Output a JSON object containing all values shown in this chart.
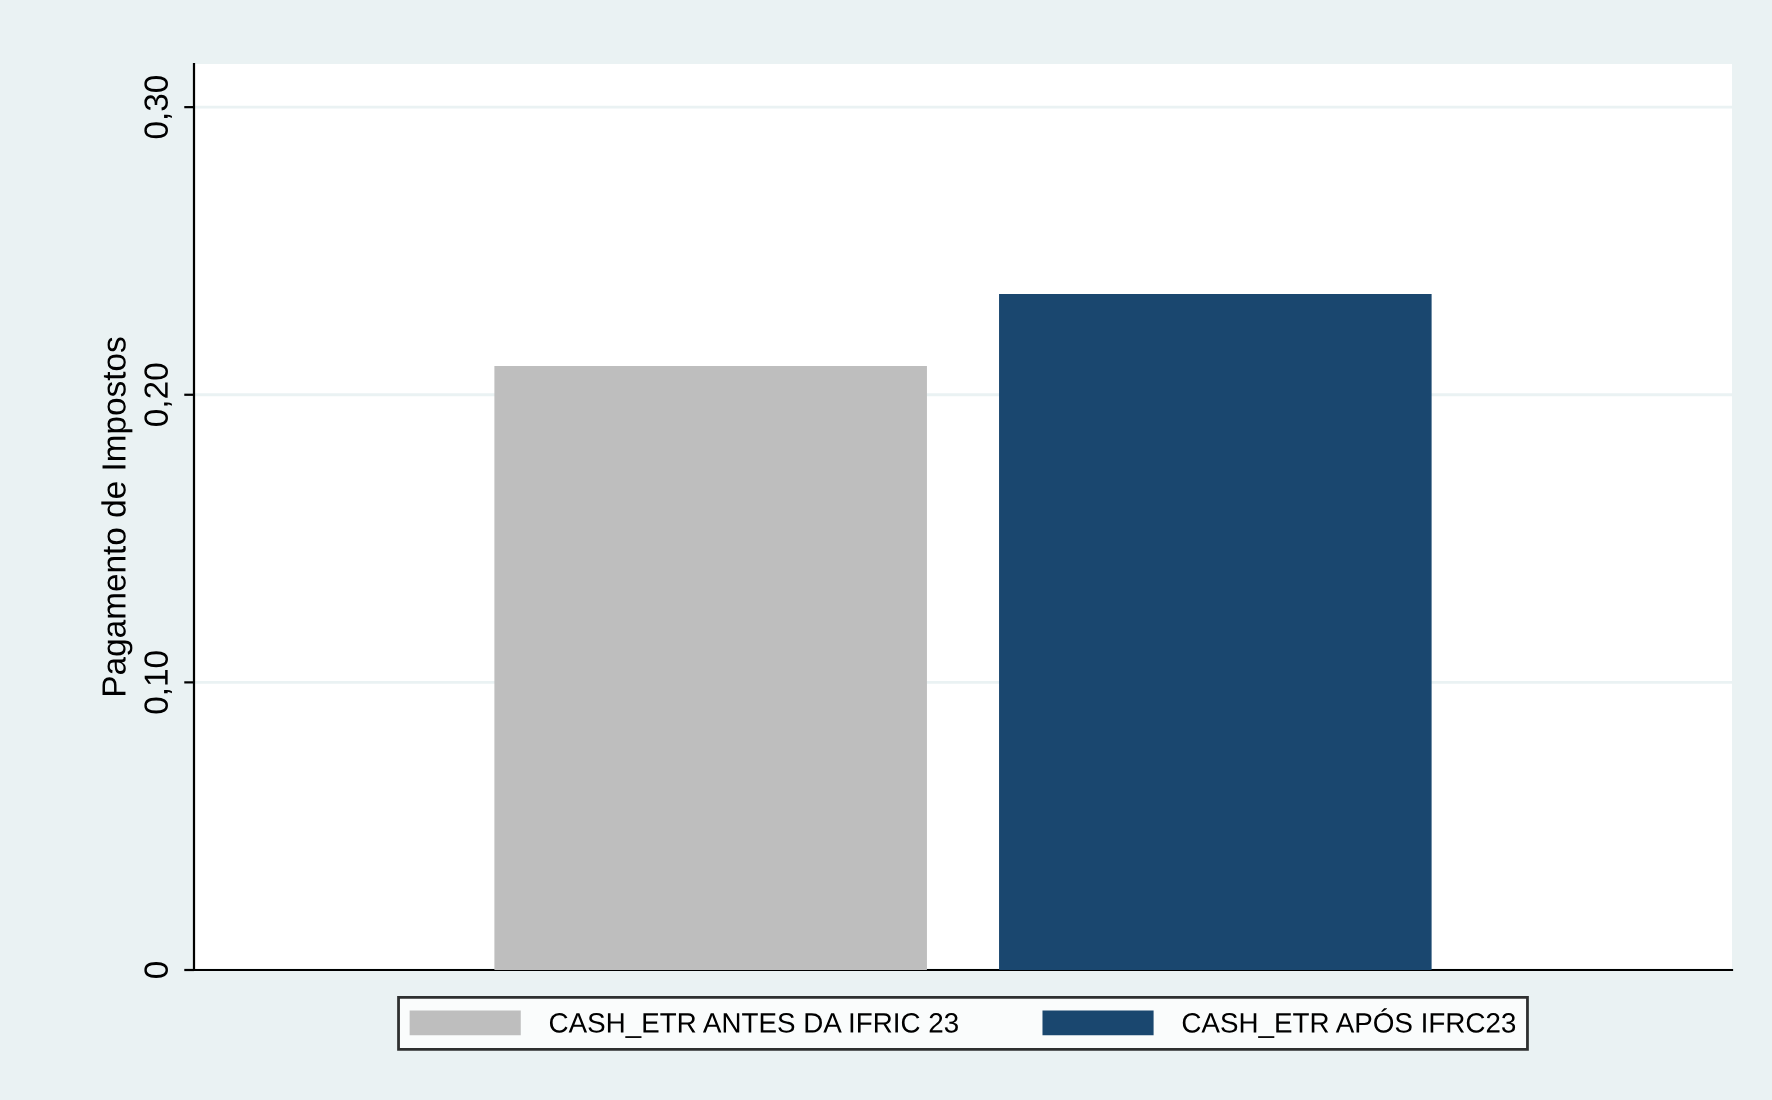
{
  "chart_data": {
    "type": "bar",
    "ylabel": "Pagamento de Impostos",
    "categories": [
      null
    ],
    "series": [
      {
        "name": "CASH_ETR ANTES DA IFRIC 23",
        "color": "#bebebe",
        "values": [
          0.21
        ]
      },
      {
        "name": "CASH_ETR APÓS IFRC23",
        "color": "#1a476f",
        "values": [
          0.235
        ]
      }
    ],
    "ylim": [
      0,
      0.315
    ],
    "yticks": [
      0,
      {
        "value": 0.1,
        "label": "0,10"
      },
      {
        "value": 0.2,
        "label": "0,20"
      },
      {
        "value": 0.3,
        "label": "0,30"
      }
    ],
    "grid": "y",
    "legend": "bottom",
    "tick_labels": "y"
  }
}
